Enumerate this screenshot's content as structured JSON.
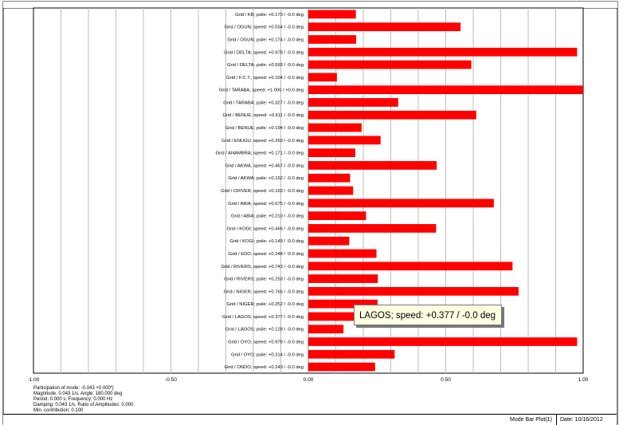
{
  "chart_data": {
    "type": "bar",
    "orientation": "horizontal",
    "xlim": [
      -1.0,
      1.0
    ],
    "xticks": [
      -1.0,
      -0.5,
      0.0,
      0.5,
      1.0
    ],
    "xtick_labels": [
      "-1.00",
      "-0.50",
      "0.00",
      "0.50",
      "1.00"
    ],
    "bar_color": "#ff0000",
    "grid": true,
    "categories": [
      "Grid / KB; psile: +0.173 / -0.0 deg",
      "Grid / OGUN; speed: +0.554 / -0.0 deg",
      "Grid / OGUN; psile: +0.174 / -0.0 deg",
      "Grid / DELTA; speed: +0.978 / -0.0 deg",
      "Grid / DELTA; psile: +0.593 / -0.0 deg",
      "Grid / F.C.T.; speed: +0.104 / -0.0 deg",
      "Grid / TARABA; speed: +1.000 / +0.0 deg",
      "Grid / TARABA; psile: +0.327 / -0.0 deg",
      "Grid / BENUE; speed: +0.611 / -0.0 deg",
      "Grid / BENUE; psile: +0.194 / -0.0 deg",
      "Grid / ENUGU; speed: +0.263 / -0.0 deg",
      "Grid / ANAMBRA; speed: +0.171 / -0.0 deg",
      "Grid / AKWA; speed: +0.467 / -0.0 deg",
      "Grid / AKWA; psile: +0.152 / -0.0 deg",
      "Grid / CRIVER; speed: +0.163 / -0.0 deg",
      "Grid / ABIA; speed: +0.675 / -0.0 deg",
      "Grid / ABIA; psile: +0.210 / -0.0 deg",
      "Grid / KOGI; speed: +0.465 / -0.0 deg",
      "Grid / KOGI; psile: +0.149 / -0.0 deg",
      "Grid / EDO; speed: +0.248 / -0.0 deg",
      "Grid / RIVERS; speed: +0.743 / -0.0 deg",
      "Grid / RIVERS; psile: +0.253 / -0.0 deg",
      "Grid / NIGER; speed: +0.765 / -0.0 deg",
      "Grid / NIGER; psile: +0.252 / -0.0 deg",
      "Grid / LAGOS; speed: +0.377 / -0.0 deg",
      "Grid / LAGOS; psile: +0.128 / -0.0 deg",
      "Grid / OYO; speed: +0.978 / -0.0 deg",
      "Grid / OYO; psile: +0.314 / -0.0 deg",
      "Grid / ONDO; speed: +0.243 / -0.0 deg"
    ],
    "values": [
      0.173,
      0.554,
      0.174,
      0.978,
      0.593,
      0.104,
      1.0,
      0.327,
      0.611,
      0.194,
      0.263,
      0.171,
      0.467,
      0.152,
      0.163,
      0.675,
      0.21,
      0.465,
      0.149,
      0.248,
      0.743,
      0.253,
      0.765,
      0.252,
      0.377,
      0.128,
      0.978,
      0.314,
      0.243
    ]
  },
  "info_lines": [
    "Participation of mode: -0.043 +0.000*j",
    "Magnitude: 0.043 1/s,  Angle: 180.000 deg",
    "Period: 0.000 s,  Frequency: 0.000 Hz",
    "Damping: 0.043 1/s,  Ratio of Amplitudes: 0.000",
    "Min. contribution: 0.100"
  ],
  "tooltip": "LAGOS; speed:  +0.377 /   -0.0 deg",
  "footer": {
    "plot_name": "Mode Bar Plot(1)",
    "date": "Date: 10/16/2012"
  }
}
